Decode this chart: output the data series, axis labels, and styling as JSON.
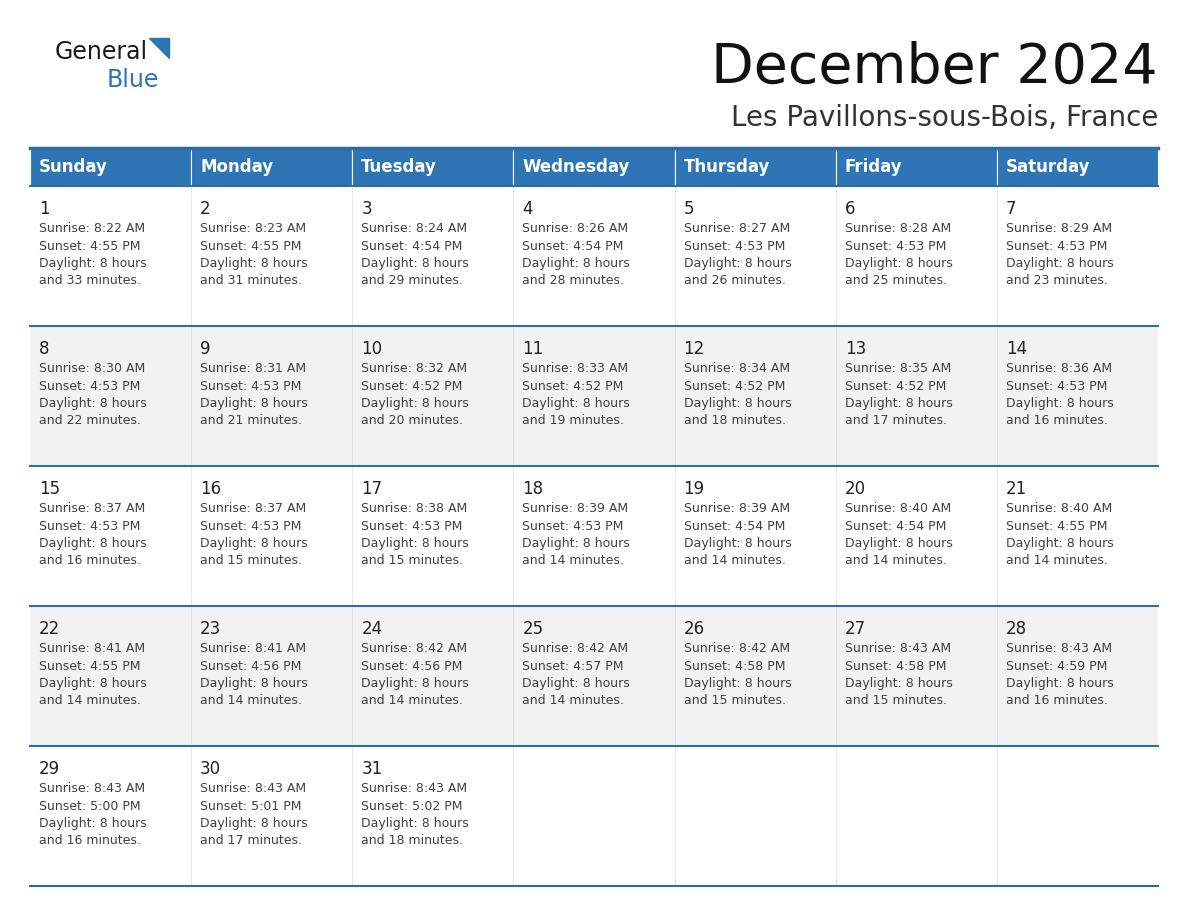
{
  "title": "December 2024",
  "subtitle": "Les Pavillons-sous-Bois, France",
  "days_of_week": [
    "Sunday",
    "Monday",
    "Tuesday",
    "Wednesday",
    "Thursday",
    "Friday",
    "Saturday"
  ],
  "header_bg": "#2E75B6",
  "header_text": "#FFFFFF",
  "row_bg_white": "#FFFFFF",
  "row_bg_gray": "#F2F2F2",
  "cell_text_color": "#404040",
  "day_num_color": "#222222",
  "separator_color": "#2E6DA4",
  "title_color": "#111111",
  "subtitle_color": "#333333",
  "logo_general_color": "#1a1a1a",
  "logo_blue_color": "#2E75B6",
  "weeks": [
    [
      {
        "day": 1,
        "sunrise": "8:22 AM",
        "sunset": "4:55 PM",
        "daylight": "8 hours",
        "daylight2": "and 33 minutes."
      },
      {
        "day": 2,
        "sunrise": "8:23 AM",
        "sunset": "4:55 PM",
        "daylight": "8 hours",
        "daylight2": "and 31 minutes."
      },
      {
        "day": 3,
        "sunrise": "8:24 AM",
        "sunset": "4:54 PM",
        "daylight": "8 hours",
        "daylight2": "and 29 minutes."
      },
      {
        "day": 4,
        "sunrise": "8:26 AM",
        "sunset": "4:54 PM",
        "daylight": "8 hours",
        "daylight2": "and 28 minutes."
      },
      {
        "day": 5,
        "sunrise": "8:27 AM",
        "sunset": "4:53 PM",
        "daylight": "8 hours",
        "daylight2": "and 26 minutes."
      },
      {
        "day": 6,
        "sunrise": "8:28 AM",
        "sunset": "4:53 PM",
        "daylight": "8 hours",
        "daylight2": "and 25 minutes."
      },
      {
        "day": 7,
        "sunrise": "8:29 AM",
        "sunset": "4:53 PM",
        "daylight": "8 hours",
        "daylight2": "and 23 minutes."
      }
    ],
    [
      {
        "day": 8,
        "sunrise": "8:30 AM",
        "sunset": "4:53 PM",
        "daylight": "8 hours",
        "daylight2": "and 22 minutes."
      },
      {
        "day": 9,
        "sunrise": "8:31 AM",
        "sunset": "4:53 PM",
        "daylight": "8 hours",
        "daylight2": "and 21 minutes."
      },
      {
        "day": 10,
        "sunrise": "8:32 AM",
        "sunset": "4:52 PM",
        "daylight": "8 hours",
        "daylight2": "and 20 minutes."
      },
      {
        "day": 11,
        "sunrise": "8:33 AM",
        "sunset": "4:52 PM",
        "daylight": "8 hours",
        "daylight2": "and 19 minutes."
      },
      {
        "day": 12,
        "sunrise": "8:34 AM",
        "sunset": "4:52 PM",
        "daylight": "8 hours",
        "daylight2": "and 18 minutes."
      },
      {
        "day": 13,
        "sunrise": "8:35 AM",
        "sunset": "4:52 PM",
        "daylight": "8 hours",
        "daylight2": "and 17 minutes."
      },
      {
        "day": 14,
        "sunrise": "8:36 AM",
        "sunset": "4:53 PM",
        "daylight": "8 hours",
        "daylight2": "and 16 minutes."
      }
    ],
    [
      {
        "day": 15,
        "sunrise": "8:37 AM",
        "sunset": "4:53 PM",
        "daylight": "8 hours",
        "daylight2": "and 16 minutes."
      },
      {
        "day": 16,
        "sunrise": "8:37 AM",
        "sunset": "4:53 PM",
        "daylight": "8 hours",
        "daylight2": "and 15 minutes."
      },
      {
        "day": 17,
        "sunrise": "8:38 AM",
        "sunset": "4:53 PM",
        "daylight": "8 hours",
        "daylight2": "and 15 minutes."
      },
      {
        "day": 18,
        "sunrise": "8:39 AM",
        "sunset": "4:53 PM",
        "daylight": "8 hours",
        "daylight2": "and 14 minutes."
      },
      {
        "day": 19,
        "sunrise": "8:39 AM",
        "sunset": "4:54 PM",
        "daylight": "8 hours",
        "daylight2": "and 14 minutes."
      },
      {
        "day": 20,
        "sunrise": "8:40 AM",
        "sunset": "4:54 PM",
        "daylight": "8 hours",
        "daylight2": "and 14 minutes."
      },
      {
        "day": 21,
        "sunrise": "8:40 AM",
        "sunset": "4:55 PM",
        "daylight": "8 hours",
        "daylight2": "and 14 minutes."
      }
    ],
    [
      {
        "day": 22,
        "sunrise": "8:41 AM",
        "sunset": "4:55 PM",
        "daylight": "8 hours",
        "daylight2": "and 14 minutes."
      },
      {
        "day": 23,
        "sunrise": "8:41 AM",
        "sunset": "4:56 PM",
        "daylight": "8 hours",
        "daylight2": "and 14 minutes."
      },
      {
        "day": 24,
        "sunrise": "8:42 AM",
        "sunset": "4:56 PM",
        "daylight": "8 hours",
        "daylight2": "and 14 minutes."
      },
      {
        "day": 25,
        "sunrise": "8:42 AM",
        "sunset": "4:57 PM",
        "daylight": "8 hours",
        "daylight2": "and 14 minutes."
      },
      {
        "day": 26,
        "sunrise": "8:42 AM",
        "sunset": "4:58 PM",
        "daylight": "8 hours",
        "daylight2": "and 15 minutes."
      },
      {
        "day": 27,
        "sunrise": "8:43 AM",
        "sunset": "4:58 PM",
        "daylight": "8 hours",
        "daylight2": "and 15 minutes."
      },
      {
        "day": 28,
        "sunrise": "8:43 AM",
        "sunset": "4:59 PM",
        "daylight": "8 hours",
        "daylight2": "and 16 minutes."
      }
    ],
    [
      {
        "day": 29,
        "sunrise": "8:43 AM",
        "sunset": "5:00 PM",
        "daylight": "8 hours",
        "daylight2": "and 16 minutes."
      },
      {
        "day": 30,
        "sunrise": "8:43 AM",
        "sunset": "5:01 PM",
        "daylight": "8 hours",
        "daylight2": "and 17 minutes."
      },
      {
        "day": 31,
        "sunrise": "8:43 AM",
        "sunset": "5:02 PM",
        "daylight": "8 hours",
        "daylight2": "and 18 minutes."
      },
      null,
      null,
      null,
      null
    ]
  ]
}
